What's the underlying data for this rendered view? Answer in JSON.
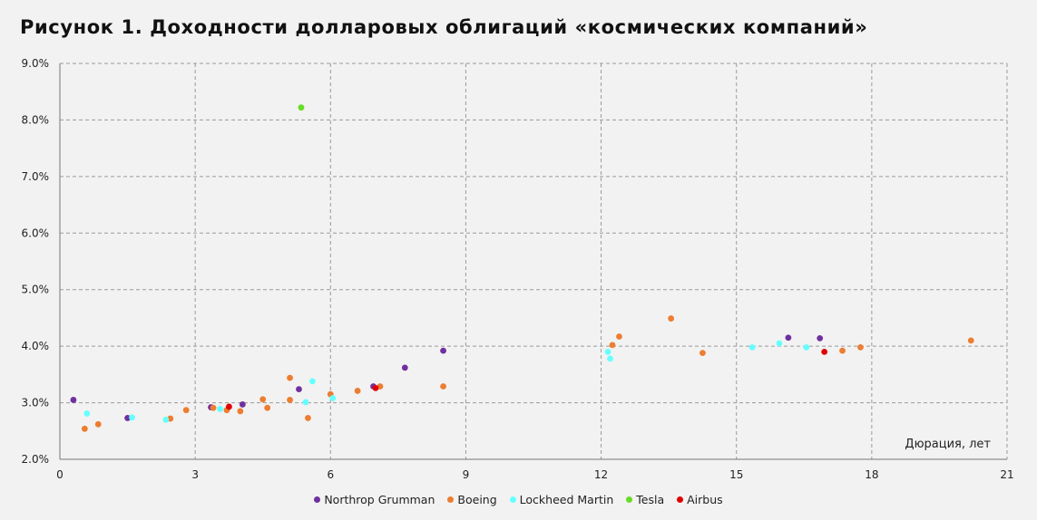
{
  "title": "Рисунок 1. Доходности долларовых облигаций «космических компаний»",
  "chart_data": {
    "type": "scatter",
    "xlabel": "Дюрация, лет",
    "ylabel": "",
    "xlim": [
      0,
      21
    ],
    "ylim": [
      2.0,
      9.0
    ],
    "x_ticks": [
      0,
      3,
      6,
      9,
      12,
      15,
      18,
      21
    ],
    "y_ticks": [
      "2.0%",
      "3.0%",
      "4.0%",
      "5.0%",
      "6.0%",
      "7.0%",
      "8.0%",
      "9.0%"
    ],
    "y_tick_values": [
      2,
      3,
      4,
      5,
      6,
      7,
      8,
      9
    ],
    "grid": true,
    "legend_position": "bottom-center",
    "series": [
      {
        "name": "Northrop Grumman",
        "color": "#7030a0",
        "points": [
          [
            0.3,
            3.05
          ],
          [
            1.5,
            2.73
          ],
          [
            3.35,
            2.92
          ],
          [
            4.05,
            2.97
          ],
          [
            5.3,
            3.24
          ],
          [
            6.95,
            3.29
          ],
          [
            7.65,
            3.62
          ],
          [
            8.5,
            3.92
          ],
          [
            16.15,
            4.15
          ],
          [
            16.85,
            4.14
          ]
        ]
      },
      {
        "name": "Boeing",
        "color": "#ed7d31",
        "points": [
          [
            0.55,
            2.54
          ],
          [
            0.85,
            2.62
          ],
          [
            2.45,
            2.72
          ],
          [
            2.8,
            2.87
          ],
          [
            3.4,
            2.91
          ],
          [
            3.7,
            2.87
          ],
          [
            4.0,
            2.85
          ],
          [
            4.5,
            3.06
          ],
          [
            4.6,
            2.91
          ],
          [
            5.1,
            3.44
          ],
          [
            5.1,
            3.05
          ],
          [
            5.5,
            2.73
          ],
          [
            6.0,
            3.15
          ],
          [
            6.6,
            3.21
          ],
          [
            7.1,
            3.29
          ],
          [
            8.5,
            3.29
          ],
          [
            12.25,
            4.02
          ],
          [
            12.4,
            4.17
          ],
          [
            13.55,
            4.49
          ],
          [
            14.25,
            3.88
          ],
          [
            17.35,
            3.92
          ],
          [
            17.75,
            3.98
          ],
          [
            20.2,
            4.1
          ]
        ]
      },
      {
        "name": "Lockheed Martin",
        "color": "#66ffff",
        "points": [
          [
            0.6,
            2.81
          ],
          [
            1.6,
            2.74
          ],
          [
            2.35,
            2.7
          ],
          [
            3.55,
            2.89
          ],
          [
            5.45,
            3.01
          ],
          [
            5.6,
            3.38
          ],
          [
            6.05,
            3.08
          ],
          [
            12.15,
            3.9
          ],
          [
            12.2,
            3.78
          ],
          [
            15.35,
            3.98
          ],
          [
            15.95,
            4.05
          ],
          [
            16.55,
            3.98
          ]
        ]
      },
      {
        "name": "Tesla",
        "color": "#66dd22",
        "points": [
          [
            5.35,
            8.22
          ]
        ]
      },
      {
        "name": "Airbus",
        "color": "#e00000",
        "points": [
          [
            3.75,
            2.93
          ],
          [
            7.0,
            3.26
          ],
          [
            16.95,
            3.9
          ]
        ]
      }
    ]
  }
}
